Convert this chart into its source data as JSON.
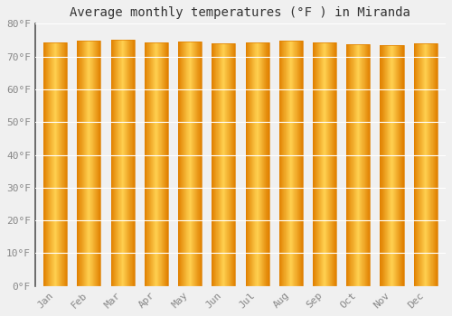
{
  "title": "Average monthly temperatures (°F ) in Miranda",
  "months": [
    "Jan",
    "Feb",
    "Mar",
    "Apr",
    "May",
    "Jun",
    "Jul",
    "Aug",
    "Sep",
    "Oct",
    "Nov",
    "Dec"
  ],
  "values": [
    74.3,
    74.8,
    75.0,
    74.3,
    74.5,
    74.1,
    74.3,
    74.8,
    74.3,
    73.8,
    73.6,
    74.1
  ],
  "ylim": [
    0,
    80
  ],
  "yticks": [
    0,
    10,
    20,
    30,
    40,
    50,
    60,
    70,
    80
  ],
  "ytick_labels": [
    "0°F",
    "10°F",
    "20°F",
    "30°F",
    "40°F",
    "50°F",
    "60°F",
    "70°F",
    "80°F"
  ],
  "bar_color_center": "#FFD050",
  "bar_color_edge": "#E08000",
  "background_color": "#F0F0F0",
  "plot_bg_color": "#F0F0F0",
  "grid_color": "#FFFFFF",
  "title_fontsize": 10,
  "tick_fontsize": 8,
  "tick_color": "#888888",
  "bar_edge_color": "#CC8800",
  "bar_edge_width": 0.8,
  "bar_width": 0.7
}
